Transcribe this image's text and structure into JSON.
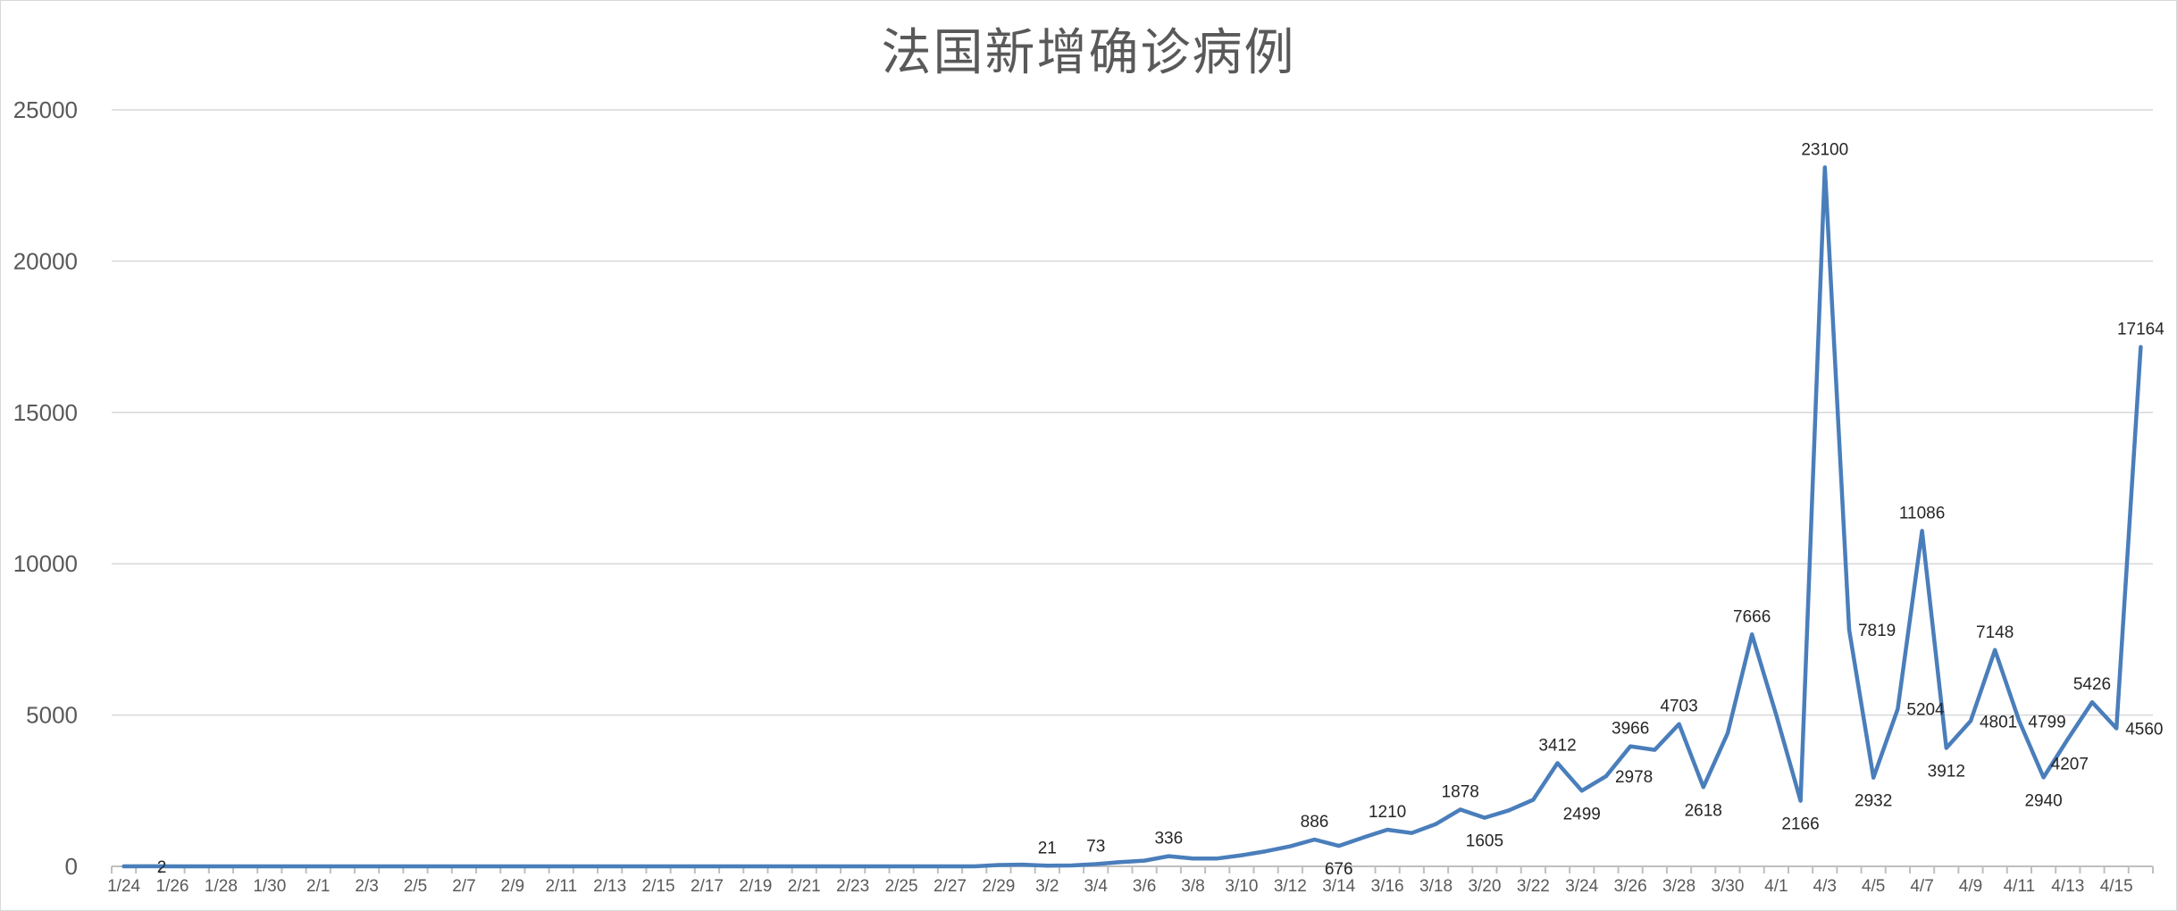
{
  "chart_data": {
    "type": "line",
    "title": "法国新增确诊病例",
    "xlabel": "",
    "ylabel": "",
    "ylim": [
      0,
      25000
    ],
    "yticks": [
      0,
      5000,
      10000,
      15000,
      20000,
      25000
    ],
    "grid": true,
    "legend": "none",
    "colors": {
      "series": "#4a7ebb",
      "grid": "#d9d9d9",
      "text": "#595959"
    },
    "x_tick_labels": [
      "1/24",
      "1/26",
      "1/28",
      "1/30",
      "2/1",
      "2/3",
      "2/5",
      "2/7",
      "2/9",
      "2/11",
      "2/13",
      "2/15",
      "2/17",
      "2/19",
      "2/21",
      "2/23",
      "2/25",
      "2/27",
      "2/29",
      "3/2",
      "3/4",
      "3/6",
      "3/8",
      "3/10",
      "3/12",
      "3/14",
      "3/16",
      "3/18",
      "3/20",
      "3/22",
      "3/24",
      "3/26",
      "3/28",
      "3/30",
      "4/1",
      "4/3",
      "4/5",
      "4/7",
      "4/9",
      "4/11",
      "4/13",
      "4/15"
    ],
    "x": [
      "1/24",
      "1/25",
      "1/26",
      "1/27",
      "1/28",
      "1/29",
      "1/30",
      "1/31",
      "2/1",
      "2/2",
      "2/3",
      "2/4",
      "2/5",
      "2/6",
      "2/7",
      "2/8",
      "2/9",
      "2/10",
      "2/11",
      "2/12",
      "2/13",
      "2/14",
      "2/15",
      "2/16",
      "2/17",
      "2/18",
      "2/19",
      "2/20",
      "2/21",
      "2/22",
      "2/23",
      "2/24",
      "2/25",
      "2/26",
      "2/27",
      "2/28",
      "2/29",
      "3/1",
      "3/2",
      "3/3",
      "3/4",
      "3/5",
      "3/6",
      "3/7",
      "3/8",
      "3/9",
      "3/10",
      "3/11",
      "3/12",
      "3/13",
      "3/14",
      "3/15",
      "3/16",
      "3/17",
      "3/18",
      "3/19",
      "3/20",
      "3/21",
      "3/22",
      "3/23",
      "3/24",
      "3/25",
      "3/26",
      "3/27",
      "3/28",
      "3/29",
      "3/30",
      "3/31",
      "4/1",
      "4/2",
      "4/3",
      "4/4",
      "4/5",
      "4/6",
      "4/7",
      "4/8",
      "4/9",
      "4/10",
      "4/11",
      "4/12",
      "4/13",
      "4/14",
      "4/15",
      "4/16"
    ],
    "series": [
      {
        "values": [
          0,
          2,
          0,
          0,
          0,
          0,
          0,
          0,
          0,
          0,
          0,
          0,
          0,
          0,
          0,
          0,
          0,
          0,
          0,
          0,
          0,
          0,
          0,
          0,
          0,
          0,
          0,
          0,
          0,
          0,
          0,
          0,
          0,
          0,
          0,
          0,
          43,
          57,
          21,
          30,
          73,
          138,
          190,
          336,
          260,
          260,
          366,
          499,
          660,
          886,
          676,
          950,
          1210,
          1100,
          1400,
          1878,
          1605,
          1850,
          2200,
          3412,
          2499,
          2978,
          3966,
          3850,
          4703,
          2618,
          4400,
          7666,
          5000,
          2166,
          23100,
          7819,
          2932,
          5204,
          11086,
          3912,
          4801,
          7148,
          4799,
          2940,
          4207,
          5426,
          4560,
          17164
        ],
        "labels": [
          {
            "i": 1,
            "text": "2",
            "pos": "right"
          },
          {
            "i": 38,
            "text": "21",
            "pos": "above"
          },
          {
            "i": 40,
            "text": "73",
            "pos": "above"
          },
          {
            "i": 43,
            "text": "336",
            "pos": "above"
          },
          {
            "i": 49,
            "text": "886",
            "pos": "above"
          },
          {
            "i": 50,
            "text": "676",
            "pos": "below"
          },
          {
            "i": 52,
            "text": "1210",
            "pos": "above"
          },
          {
            "i": 55,
            "text": "1878",
            "pos": "above"
          },
          {
            "i": 56,
            "text": "1605",
            "pos": "below"
          },
          {
            "i": 59,
            "text": "3412",
            "pos": "above"
          },
          {
            "i": 60,
            "text": "2499",
            "pos": "below"
          },
          {
            "i": 61,
            "text": "2978",
            "pos": "right"
          },
          {
            "i": 62,
            "text": "3966",
            "pos": "above"
          },
          {
            "i": 64,
            "text": "4703",
            "pos": "above"
          },
          {
            "i": 65,
            "text": "2618",
            "pos": "below"
          },
          {
            "i": 67,
            "text": "7666",
            "pos": "above"
          },
          {
            "i": 69,
            "text": "2166",
            "pos": "below"
          },
          {
            "i": 70,
            "text": "23100",
            "pos": "above"
          },
          {
            "i": 71,
            "text": "7819",
            "pos": "right"
          },
          {
            "i": 72,
            "text": "2932",
            "pos": "below"
          },
          {
            "i": 73,
            "text": "5204",
            "pos": "right"
          },
          {
            "i": 74,
            "text": "11086",
            "pos": "above"
          },
          {
            "i": 75,
            "text": "3912",
            "pos": "below"
          },
          {
            "i": 76,
            "text": "4801",
            "pos": "right"
          },
          {
            "i": 77,
            "text": "7148",
            "pos": "above"
          },
          {
            "i": 78,
            "text": "4799",
            "pos": "right"
          },
          {
            "i": 79,
            "text": "2940",
            "pos": "below"
          },
          {
            "i": 80,
            "text": "4207",
            "pos": "belowright"
          },
          {
            "i": 81,
            "text": "5426",
            "pos": "above"
          },
          {
            "i": 82,
            "text": "4560",
            "pos": "right"
          },
          {
            "i": 83,
            "text": "17164",
            "pos": "above"
          }
        ]
      }
    ]
  }
}
